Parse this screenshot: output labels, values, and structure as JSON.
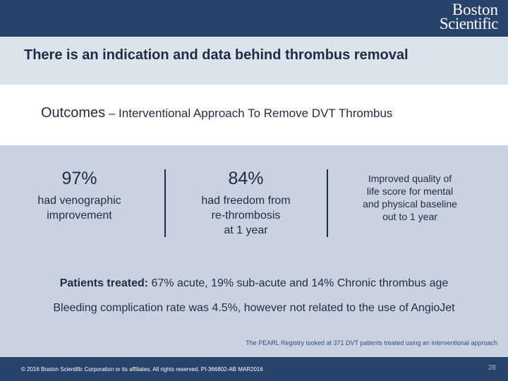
{
  "header": {
    "logo_line1": "Boston",
    "logo_line2": "Scientific"
  },
  "headline": "There is an indication and data behind thrombus removal",
  "subtitle": {
    "main": "Outcomes",
    "rest": " – Interventional Approach To Remove DVT Thrombus"
  },
  "stats": [
    {
      "value": "97%",
      "desc_line1": "had venographic",
      "desc_line2": "improvement"
    },
    {
      "value": "84%",
      "desc_line1": "had freedom from",
      "desc_line2": "re-thrombosis",
      "desc_line3": "at 1 year"
    },
    {
      "desc_line1": "Improved quality of",
      "desc_line2": "life score for mental",
      "desc_line3": "and physical baseline",
      "desc_line4": "out to 1 year"
    }
  ],
  "patients": {
    "label": "Patients treated:",
    "text": " 67% acute, 19% sub-acute and 14% Chronic thrombus age"
  },
  "bleeding": "Bleeding complication rate was 4.5%, however not related to the use of AngioJet",
  "footnote": "The PEARL Registry looked at 371 DVT patients treated using an interventional approach",
  "footer": {
    "copyright": "© 2016 Boston Scientific Corporation or its affiliates. All rights reserved. PI-366802-AB MAR2016",
    "page": "28"
  },
  "colors": {
    "header_bar": "#27426b",
    "text": "#1f2d44",
    "background": "#c9d2df"
  }
}
